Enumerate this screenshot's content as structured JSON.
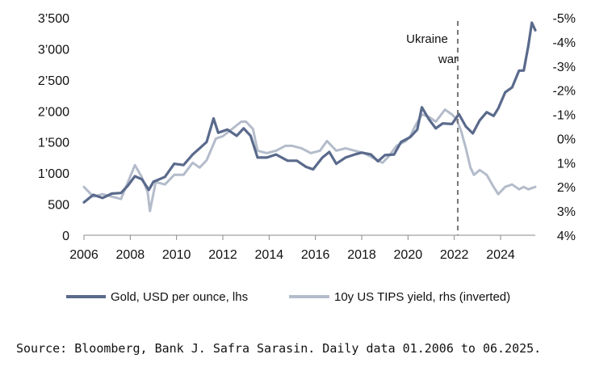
{
  "chart_data": {
    "type": "line",
    "title": "",
    "xlabel": "",
    "ylabel_left": "",
    "ylabel_right": "",
    "x_ticks": [
      "2006",
      "2008",
      "2010",
      "2012",
      "2014",
      "2016",
      "2018",
      "2020",
      "2022",
      "2024"
    ],
    "y_left_ticks": [
      "0",
      "500",
      "1’000",
      "1’500",
      "2’000",
      "2’500",
      "3’000",
      "3’500"
    ],
    "y_left_tick_values": [
      0,
      500,
      1000,
      1500,
      2000,
      2500,
      3000,
      3500
    ],
    "y_right_ticks": [
      "-5%",
      "-4%",
      "-3%",
      "-2%",
      "-1%",
      "0%",
      "1%",
      "2%",
      "3%",
      "4%"
    ],
    "y_right_tick_values": [
      -5,
      -4,
      -3,
      -2,
      -1,
      0,
      1,
      2,
      3,
      4
    ],
    "xlim": [
      2006.0,
      2025.5
    ],
    "ylim_left": [
      0,
      3500
    ],
    "ylim_right_inverted": [
      4,
      -5
    ],
    "grid": false,
    "legend_position": "bottom",
    "annotations": [
      {
        "label_line1": "Ukraine",
        "label_line2": "war",
        "x": 2022.15
      }
    ],
    "series": [
      {
        "name": "Gold, USD per ounce, lhs",
        "axis": "left",
        "color": "#5a6a8c",
        "points": [
          [
            2006.0,
            530
          ],
          [
            2006.4,
            650
          ],
          [
            2006.8,
            600
          ],
          [
            2007.2,
            670
          ],
          [
            2007.6,
            680
          ],
          [
            2007.9,
            800
          ],
          [
            2008.2,
            950
          ],
          [
            2008.5,
            900
          ],
          [
            2008.8,
            730
          ],
          [
            2009.0,
            860
          ],
          [
            2009.5,
            940
          ],
          [
            2009.9,
            1150
          ],
          [
            2010.3,
            1130
          ],
          [
            2010.7,
            1300
          ],
          [
            2011.0,
            1400
          ],
          [
            2011.3,
            1500
          ],
          [
            2011.6,
            1880
          ],
          [
            2011.8,
            1650
          ],
          [
            2012.2,
            1700
          ],
          [
            2012.6,
            1600
          ],
          [
            2012.9,
            1720
          ],
          [
            2013.2,
            1600
          ],
          [
            2013.5,
            1250
          ],
          [
            2013.9,
            1250
          ],
          [
            2014.3,
            1300
          ],
          [
            2014.8,
            1200
          ],
          [
            2015.2,
            1200
          ],
          [
            2015.6,
            1100
          ],
          [
            2015.9,
            1060
          ],
          [
            2016.3,
            1250
          ],
          [
            2016.6,
            1340
          ],
          [
            2016.9,
            1150
          ],
          [
            2017.3,
            1250
          ],
          [
            2017.7,
            1300
          ],
          [
            2018.0,
            1330
          ],
          [
            2018.4,
            1300
          ],
          [
            2018.7,
            1190
          ],
          [
            2019.0,
            1290
          ],
          [
            2019.4,
            1300
          ],
          [
            2019.7,
            1500
          ],
          [
            2020.1,
            1580
          ],
          [
            2020.4,
            1700
          ],
          [
            2020.6,
            2060
          ],
          [
            2020.9,
            1870
          ],
          [
            2021.2,
            1720
          ],
          [
            2021.5,
            1800
          ],
          [
            2021.9,
            1790
          ],
          [
            2022.2,
            1950
          ],
          [
            2022.5,
            1750
          ],
          [
            2022.8,
            1640
          ],
          [
            2023.1,
            1850
          ],
          [
            2023.4,
            1980
          ],
          [
            2023.7,
            1920
          ],
          [
            2023.9,
            2040
          ],
          [
            2024.2,
            2300
          ],
          [
            2024.5,
            2380
          ],
          [
            2024.8,
            2650
          ],
          [
            2025.0,
            2650
          ],
          [
            2025.2,
            3050
          ],
          [
            2025.35,
            3420
          ],
          [
            2025.5,
            3300
          ]
        ]
      },
      {
        "name": "10y US TIPS yield, rhs (inverted)",
        "axis": "right",
        "color": "#b4bccb",
        "points": [
          [
            2006.0,
            2.0
          ],
          [
            2006.4,
            2.4
          ],
          [
            2006.8,
            2.3
          ],
          [
            2007.2,
            2.4
          ],
          [
            2007.6,
            2.5
          ],
          [
            2007.9,
            1.8
          ],
          [
            2008.2,
            1.1
          ],
          [
            2008.5,
            1.6
          ],
          [
            2008.75,
            2.2
          ],
          [
            2008.85,
            3.0
          ],
          [
            2009.1,
            1.8
          ],
          [
            2009.5,
            1.9
          ],
          [
            2009.9,
            1.5
          ],
          [
            2010.3,
            1.5
          ],
          [
            2010.7,
            1.0
          ],
          [
            2011.0,
            1.2
          ],
          [
            2011.3,
            0.9
          ],
          [
            2011.7,
            0.0
          ],
          [
            2012.0,
            -0.1
          ],
          [
            2012.4,
            -0.4
          ],
          [
            2012.8,
            -0.7
          ],
          [
            2013.0,
            -0.7
          ],
          [
            2013.3,
            -0.4
          ],
          [
            2013.5,
            0.5
          ],
          [
            2013.9,
            0.6
          ],
          [
            2014.3,
            0.5
          ],
          [
            2014.7,
            0.3
          ],
          [
            2015.0,
            0.3
          ],
          [
            2015.4,
            0.4
          ],
          [
            2015.8,
            0.6
          ],
          [
            2016.2,
            0.5
          ],
          [
            2016.5,
            0.1
          ],
          [
            2016.9,
            0.5
          ],
          [
            2017.3,
            0.4
          ],
          [
            2017.7,
            0.5
          ],
          [
            2018.1,
            0.6
          ],
          [
            2018.5,
            0.8
          ],
          [
            2018.9,
            1.0
          ],
          [
            2019.2,
            0.7
          ],
          [
            2019.5,
            0.3
          ],
          [
            2019.9,
            0.1
          ],
          [
            2020.1,
            -0.1
          ],
          [
            2020.3,
            -0.5
          ],
          [
            2020.6,
            -1.0
          ],
          [
            2020.9,
            -0.9
          ],
          [
            2021.2,
            -0.7
          ],
          [
            2021.6,
            -1.2
          ],
          [
            2021.9,
            -1.0
          ],
          [
            2022.1,
            -0.8
          ],
          [
            2022.3,
            -0.3
          ],
          [
            2022.5,
            0.4
          ],
          [
            2022.7,
            1.2
          ],
          [
            2022.85,
            1.5
          ],
          [
            2023.1,
            1.3
          ],
          [
            2023.4,
            1.5
          ],
          [
            2023.7,
            2.0
          ],
          [
            2023.9,
            2.3
          ],
          [
            2024.2,
            2.0
          ],
          [
            2024.5,
            1.9
          ],
          [
            2024.8,
            2.1
          ],
          [
            2025.0,
            2.0
          ],
          [
            2025.2,
            2.1
          ],
          [
            2025.5,
            2.0
          ]
        ]
      }
    ]
  },
  "source_text": "Source: Bloomberg, Bank J. Safra Sarasin. Daily data 01.2006 to 06.2025."
}
